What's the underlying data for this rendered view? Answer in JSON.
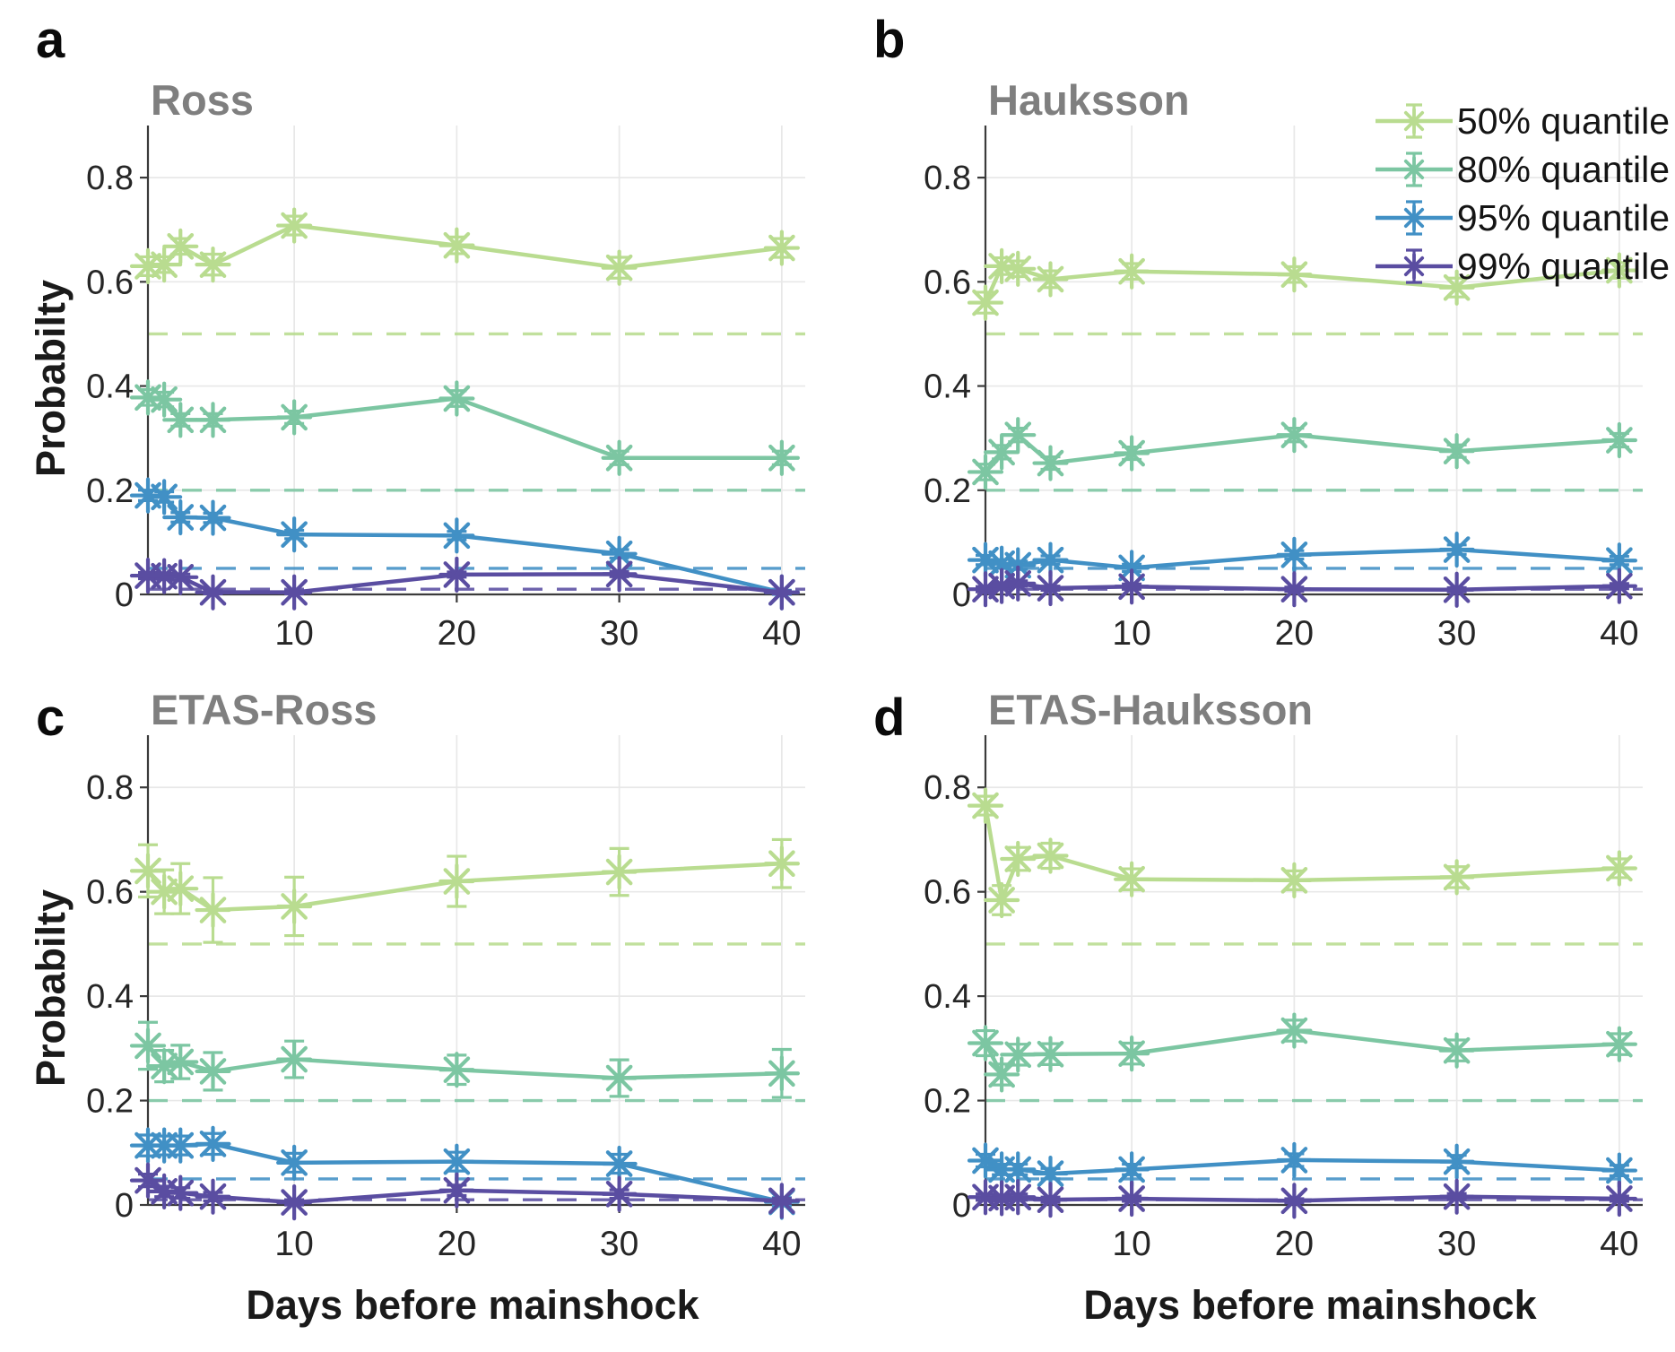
{
  "figure": {
    "ylabel": "Probabilty",
    "xlabel": "Days before mainshock",
    "colors": {
      "q50": "#b9dc90",
      "q80": "#7cc6a2",
      "q95": "#4190c5",
      "q99": "#5a4da1",
      "axis": "#3b3b3b",
      "grid": "#e8e8e8",
      "tick_label": "#262626",
      "title": "#7f7f7f"
    },
    "legend": {
      "position": "top-right-of-panel-b",
      "items": [
        {
          "label": "50% quantile",
          "color_key": "q50"
        },
        {
          "label": "80% quantile",
          "color_key": "q80"
        },
        {
          "label": "95% quantile",
          "color_key": "q95"
        },
        {
          "label": "99% quantile",
          "color_key": "q99"
        }
      ]
    },
    "axes": {
      "xticks": [
        10,
        20,
        30,
        40
      ],
      "yticks": [
        0,
        0.2,
        0.4,
        0.6,
        0.8
      ],
      "xlim": [
        1,
        41
      ],
      "ylim": [
        0,
        0.9
      ],
      "grid": true
    },
    "reference_lines": [
      {
        "value": 0.5,
        "color_key": "q50",
        "style": "dashed"
      },
      {
        "value": 0.2,
        "color_key": "q80",
        "style": "dashed"
      },
      {
        "value": 0.05,
        "color_key": "q95",
        "style": "dashed"
      },
      {
        "value": 0.01,
        "color_key": "q99",
        "style": "dashed"
      }
    ]
  },
  "chart_data": [
    {
      "type": "line",
      "panel_letter": "a",
      "title": "Ross",
      "x": [
        1,
        2,
        3,
        5,
        10,
        20,
        30,
        40
      ],
      "series": [
        {
          "name": "50% quantile",
          "color_key": "q50",
          "values": [
            0.63,
            0.633,
            0.668,
            0.633,
            0.708,
            0.67,
            0.627,
            0.665
          ],
          "err": [
            0.018,
            0.015,
            0.015,
            0.02,
            0.018,
            0.016,
            0.02,
            0.018
          ]
        },
        {
          "name": "80% quantile",
          "color_key": "q80",
          "values": [
            0.378,
            0.374,
            0.335,
            0.335,
            0.34,
            0.376,
            0.262,
            0.262
          ],
          "err": [
            0.015,
            0.014,
            0.012,
            0.012,
            0.012,
            0.015,
            0.013,
            0.013
          ]
        },
        {
          "name": "95% quantile",
          "color_key": "q95",
          "values": [
            0.19,
            0.187,
            0.148,
            0.147,
            0.115,
            0.113,
            0.078,
            0.004
          ],
          "err": [
            0.01,
            0.01,
            0.009,
            0.009,
            0.008,
            0.008,
            0.008,
            0.004
          ]
        },
        {
          "name": "99% quantile",
          "color_key": "q99",
          "values": [
            0.036,
            0.035,
            0.033,
            0.004,
            0.004,
            0.038,
            0.039,
            0.004
          ],
          "err": [
            0.006,
            0.006,
            0.006,
            0.003,
            0.003,
            0.005,
            0.005,
            0.003
          ]
        }
      ]
    },
    {
      "type": "line",
      "panel_letter": "b",
      "title": "Hauksson",
      "x": [
        1,
        2,
        3,
        5,
        10,
        20,
        30,
        40
      ],
      "series": [
        {
          "name": "50% quantile",
          "color_key": "q50",
          "values": [
            0.56,
            0.63,
            0.625,
            0.605,
            0.62,
            0.614,
            0.589,
            0.622
          ],
          "err": [
            0.02,
            0.016,
            0.015,
            0.016,
            0.015,
            0.015,
            0.018,
            0.015
          ]
        },
        {
          "name": "80% quantile",
          "color_key": "q80",
          "values": [
            0.235,
            0.273,
            0.306,
            0.252,
            0.271,
            0.306,
            0.275,
            0.296
          ],
          "err": [
            0.015,
            0.013,
            0.013,
            0.012,
            0.012,
            0.013,
            0.012,
            0.013
          ]
        },
        {
          "name": "95% quantile",
          "color_key": "q95",
          "values": [
            0.066,
            0.059,
            0.056,
            0.066,
            0.051,
            0.076,
            0.086,
            0.065
          ],
          "err": [
            0.009,
            0.008,
            0.008,
            0.008,
            0.007,
            0.008,
            0.009,
            0.008
          ]
        },
        {
          "name": "99% quantile",
          "color_key": "q99",
          "values": [
            0.01,
            0.016,
            0.021,
            0.012,
            0.015,
            0.01,
            0.009,
            0.016
          ],
          "err": [
            0.005,
            0.005,
            0.005,
            0.004,
            0.005,
            0.004,
            0.004,
            0.005
          ]
        }
      ]
    },
    {
      "type": "line",
      "panel_letter": "c",
      "title": "ETAS-Ross",
      "x": [
        1,
        2,
        3,
        5,
        10,
        20,
        30,
        40
      ],
      "series": [
        {
          "name": "50% quantile",
          "color_key": "q50",
          "values": [
            0.64,
            0.6,
            0.606,
            0.565,
            0.572,
            0.62,
            0.638,
            0.654
          ],
          "err": [
            0.05,
            0.042,
            0.048,
            0.062,
            0.056,
            0.048,
            0.045,
            0.046
          ]
        },
        {
          "name": "80% quantile",
          "color_key": "q80",
          "values": [
            0.305,
            0.266,
            0.274,
            0.256,
            0.279,
            0.259,
            0.243,
            0.252
          ],
          "err": [
            0.045,
            0.03,
            0.032,
            0.036,
            0.035,
            0.028,
            0.035,
            0.046
          ]
        },
        {
          "name": "95% quantile",
          "color_key": "q95",
          "values": [
            0.114,
            0.114,
            0.114,
            0.117,
            0.081,
            0.083,
            0.079,
            0.006
          ],
          "err": [
            0.02,
            0.018,
            0.018,
            0.02,
            0.018,
            0.018,
            0.018,
            0.008
          ]
        },
        {
          "name": "99% quantile",
          "color_key": "q99",
          "values": [
            0.047,
            0.026,
            0.023,
            0.016,
            0.005,
            0.028,
            0.021,
            0.008
          ],
          "err": [
            0.012,
            0.01,
            0.01,
            0.008,
            0.005,
            0.01,
            0.008,
            0.005
          ]
        }
      ]
    },
    {
      "type": "line",
      "panel_letter": "d",
      "title": "ETAS-Hauksson",
      "x": [
        1,
        2,
        3,
        5,
        10,
        20,
        30,
        40
      ],
      "series": [
        {
          "name": "50% quantile",
          "color_key": "q50",
          "values": [
            0.765,
            0.584,
            0.663,
            0.669,
            0.624,
            0.622,
            0.628,
            0.645
          ],
          "err": [
            0.018,
            0.028,
            0.022,
            0.024,
            0.02,
            0.018,
            0.02,
            0.018
          ]
        },
        {
          "name": "80% quantile",
          "color_key": "q80",
          "values": [
            0.31,
            0.25,
            0.288,
            0.289,
            0.29,
            0.334,
            0.296,
            0.308
          ],
          "err": [
            0.024,
            0.02,
            0.02,
            0.02,
            0.02,
            0.02,
            0.02,
            0.02
          ]
        },
        {
          "name": "95% quantile",
          "color_key": "q95",
          "values": [
            0.085,
            0.068,
            0.068,
            0.06,
            0.068,
            0.086,
            0.083,
            0.066
          ],
          "err": [
            0.012,
            0.01,
            0.01,
            0.01,
            0.01,
            0.012,
            0.012,
            0.01
          ]
        },
        {
          "name": "99% quantile",
          "color_key": "q99",
          "values": [
            0.015,
            0.013,
            0.015,
            0.01,
            0.012,
            0.008,
            0.016,
            0.012
          ],
          "err": [
            0.006,
            0.006,
            0.006,
            0.005,
            0.005,
            0.004,
            0.006,
            0.005
          ]
        }
      ]
    }
  ]
}
